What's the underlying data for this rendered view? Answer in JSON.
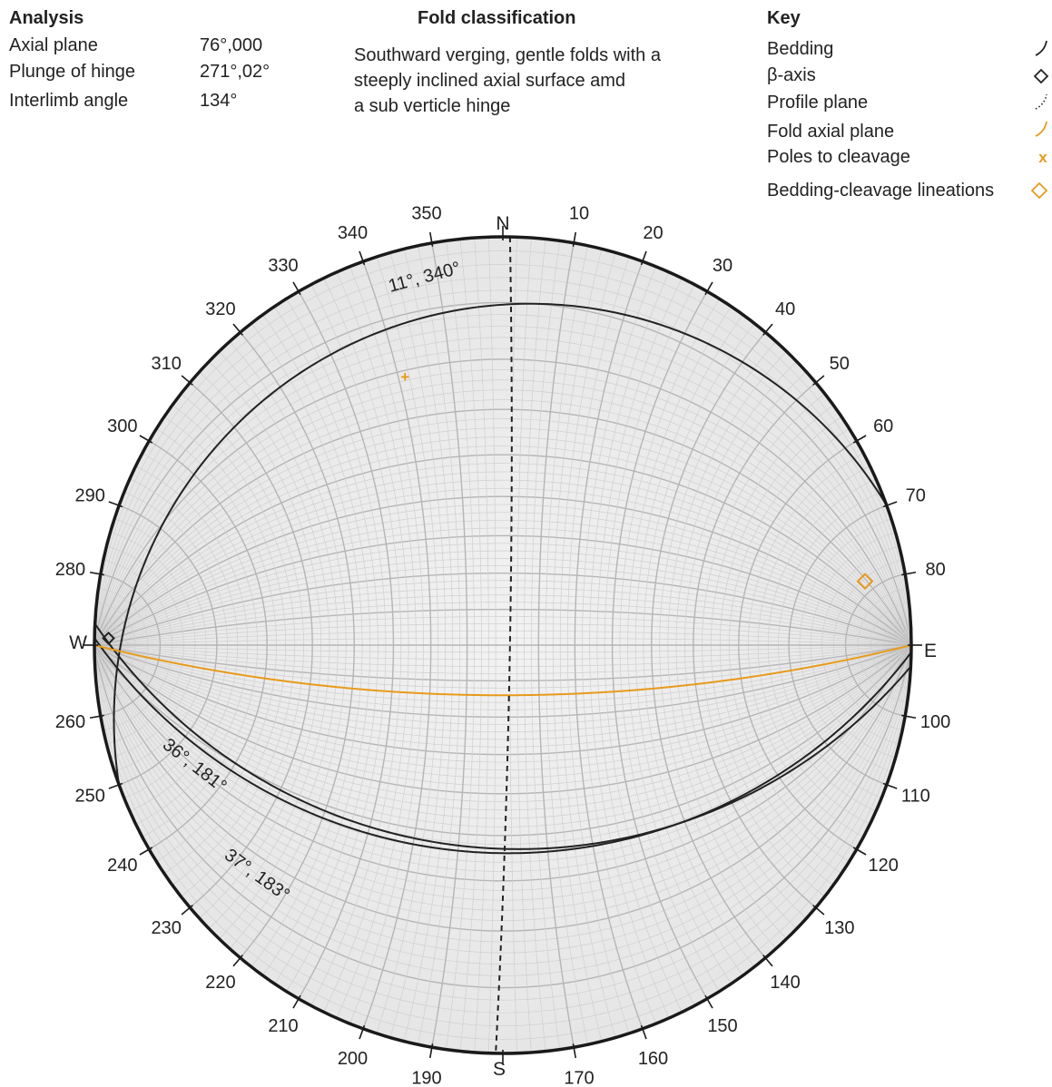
{
  "analysis": {
    "heading": "Analysis",
    "rows": [
      {
        "label": "Axial plane",
        "value": "76°,000"
      },
      {
        "label": "Plunge of hinge",
        "value": "271°,02°"
      },
      {
        "label": "Interlimb angle",
        "value": "134°"
      }
    ]
  },
  "classification": {
    "heading": "Fold classification",
    "lines": [
      "Southward verging, gentle folds with a",
      "steeply inclined axial surface amd",
      "a sub verticle hinge"
    ]
  },
  "key": {
    "heading": "Key",
    "items": [
      {
        "label": "Bedding",
        "symbol": "arc",
        "color": "#222222"
      },
      {
        "label": "β-axis",
        "symbol": "diamond",
        "color": "#222222"
      },
      {
        "label": "Profile plane",
        "symbol": "dotted-arc",
        "color": "#222222"
      },
      {
        "label": "Fold axial plane",
        "symbol": "arc",
        "color": "#e89a1a"
      },
      {
        "label": "Poles to cleavage",
        "symbol": "x",
        "color": "#e89a1a"
      },
      {
        "label": "Bedding-cleavage lineations",
        "symbol": "diamond",
        "color": "#e89a1a"
      }
    ]
  },
  "stereonet": {
    "cardinals": {
      "north": "N",
      "east": "E",
      "south": "S",
      "west": "W"
    },
    "azimuth_labels": [
      "10",
      "20",
      "30",
      "40",
      "50",
      "60",
      "70",
      "80",
      "100",
      "110",
      "120",
      "130",
      "140",
      "150",
      "160",
      "170",
      "190",
      "200",
      "210",
      "220",
      "230",
      "240",
      "250",
      "260",
      "280",
      "290",
      "300",
      "310",
      "320",
      "330",
      "340",
      "350"
    ],
    "great_circles": [
      {
        "name": "bedding-limb-north",
        "dip": 11,
        "dip_direction": 340,
        "label": "11°, 340°",
        "color": "#222222"
      },
      {
        "name": "bedding-limb-south-1",
        "dip": 36,
        "dip_direction": 181,
        "label": "36°, 181°",
        "color": "#222222"
      },
      {
        "name": "bedding-limb-south-2",
        "dip": 37,
        "dip_direction": 183,
        "label": "37°, 183°",
        "color": "#222222"
      },
      {
        "name": "fold-axial-plane",
        "strike": 90,
        "dip": 76,
        "color": "#e89a1a"
      }
    ],
    "profile_plane": {
      "strike": 1,
      "dip": 88,
      "color": "#222222"
    },
    "beta_axis": {
      "trend": 271,
      "plunge": 2,
      "color": "#222222"
    },
    "pole_to_cleavage": {
      "trend": 340,
      "plunge": 20,
      "color": "#e89a1a"
    },
    "lineation": {
      "trend": 80,
      "plunge": 6,
      "color": "#e89a1a"
    }
  }
}
